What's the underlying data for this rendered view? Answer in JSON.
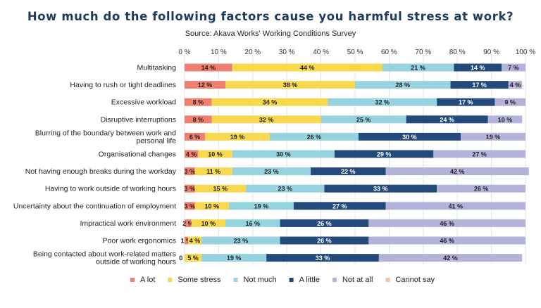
{
  "chart_data": {
    "type": "bar",
    "orientation": "horizontal",
    "stacked": true,
    "title": "How much do the following factors cause you harmful stress at work?",
    "subtitle": "Source: Akava Works' Working Conditions Survey",
    "xlim": [
      0,
      100
    ],
    "x_ticks": [
      "0 %",
      "10 %",
      "20 %",
      "30 %",
      "40 %",
      "50 %",
      "60 %",
      "70 %",
      "80 %",
      "90 %",
      "100 %"
    ],
    "grid": true,
    "legend_position": "bottom",
    "categories": [
      [
        "Multitasking"
      ],
      [
        "Having to rush or tight deadlines"
      ],
      [
        "Excessive workload"
      ],
      [
        "Disruptive interruptions"
      ],
      [
        "Blurring of the boundary between work and",
        "personal life"
      ],
      [
        "Organisational changes"
      ],
      [
        "Not having enough breaks during the workday"
      ],
      [
        "Having to work outside of working hours"
      ],
      [
        "Uncertainty about the continuation of employment"
      ],
      [
        "Impractical work environment"
      ],
      [
        "Poor work ergonomics"
      ],
      [
        "Being contacted about work-related matters",
        "outside of working hours"
      ]
    ],
    "series": [
      {
        "name": "A lot",
        "color": "#ef8070",
        "label_color": "#222222",
        "values": [
          14,
          12,
          8,
          8,
          6,
          4,
          3,
          3,
          3,
          2,
          1,
          0
        ]
      },
      {
        "name": "Some stress",
        "color": "#f8d84e",
        "label_color": "#222222",
        "values": [
          44,
          38,
          34,
          32,
          19,
          10,
          11,
          15,
          10,
          10,
          4,
          5
        ]
      },
      {
        "name": "Not much",
        "color": "#96d3de",
        "label_color": "#222222",
        "values": [
          21,
          28,
          32,
          25,
          26,
          30,
          23,
          23,
          19,
          16,
          23,
          19
        ]
      },
      {
        "name": "A little",
        "color": "#244a7c",
        "label_color": "#ffffff",
        "values": [
          14,
          17,
          17,
          24,
          30,
          29,
          22,
          33,
          27,
          26,
          26,
          33
        ]
      },
      {
        "name": "Not at all",
        "color": "#b3b3d9",
        "label_color": "#222222",
        "values": [
          7,
          4,
          9,
          10,
          19,
          27,
          42,
          26,
          41,
          46,
          46,
          42
        ]
      },
      {
        "name": "Cannot say",
        "color": "#f2c2a2",
        "label_color": "#222222",
        "values": [
          0,
          0,
          0,
          0,
          0,
          0,
          0,
          0,
          0,
          0,
          0,
          0
        ]
      }
    ]
  }
}
